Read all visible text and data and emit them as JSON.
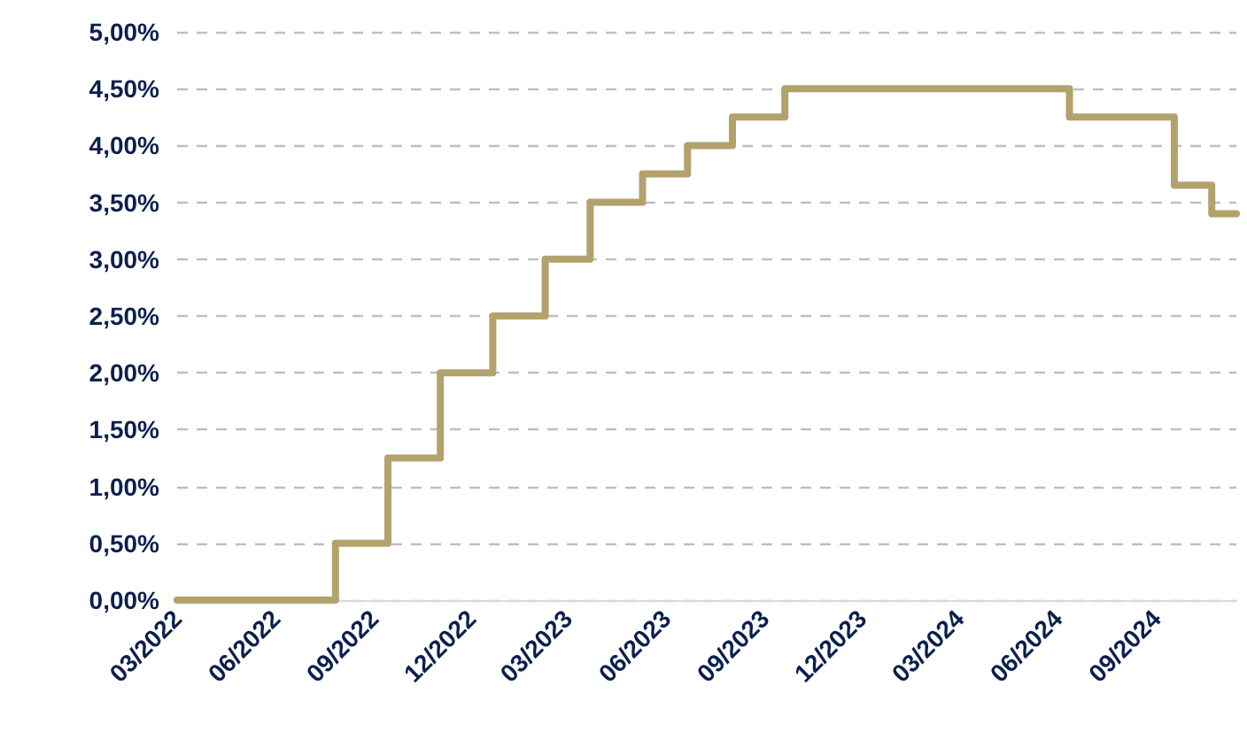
{
  "chart_data": {
    "type": "step",
    "color": "#b3a26c",
    "line_style": "solid",
    "marker": "none",
    "grid": "y",
    "x": [
      "2022-03-01",
      "2022-07-27",
      "2022-09-14",
      "2022-11-02",
      "2022-12-21",
      "2023-02-08",
      "2023-03-22",
      "2023-05-10",
      "2023-06-21",
      "2023-08-02",
      "2023-09-20",
      "2024-06-12",
      "2024-09-18",
      "2024-10-23",
      "2024-11-15"
    ],
    "values": [
      0,
      0.5,
      1.25,
      2.0,
      2.5,
      3.0,
      3.5,
      3.75,
      4.0,
      4.25,
      4.5,
      4.25,
      3.65,
      3.4,
      3.4
    ],
    "xlim": [
      "2022-03-01",
      "2024-11-15"
    ],
    "xticks": [
      {
        "value": "2022-03-01",
        "label": "03/2022"
      },
      {
        "value": "2022-06-01",
        "label": "06/2022"
      },
      {
        "value": "2022-09-01",
        "label": "09/2022"
      },
      {
        "value": "2022-12-01",
        "label": "12/2022"
      },
      {
        "value": "2023-03-01",
        "label": "03/2023"
      },
      {
        "value": "2023-06-01",
        "label": "06/2023"
      },
      {
        "value": "2023-09-01",
        "label": "09/2023"
      },
      {
        "value": "2023-12-01",
        "label": "12/2023"
      },
      {
        "value": "2024-03-01",
        "label": "03/2024"
      },
      {
        "value": "2024-06-01",
        "label": "06/2024"
      },
      {
        "value": "2024-09-01",
        "label": "09/2024"
      }
    ],
    "ylim": [
      0,
      5
    ],
    "yticks": [
      {
        "value": 0,
        "label": "0,00%"
      },
      {
        "value": 0.5,
        "label": "0,50%"
      },
      {
        "value": 1,
        "label": "1,00%"
      },
      {
        "value": 1.5,
        "label": "1,50%"
      },
      {
        "value": 2,
        "label": "2,00%"
      },
      {
        "value": 2.5,
        "label": "2,50%"
      },
      {
        "value": 3,
        "label": "3,00%"
      },
      {
        "value": 3.5,
        "label": "3,50%"
      },
      {
        "value": 4,
        "label": "4,00%"
      },
      {
        "value": 4.5,
        "label": "4,50%"
      },
      {
        "value": 5,
        "label": "5,00%"
      }
    ]
  }
}
